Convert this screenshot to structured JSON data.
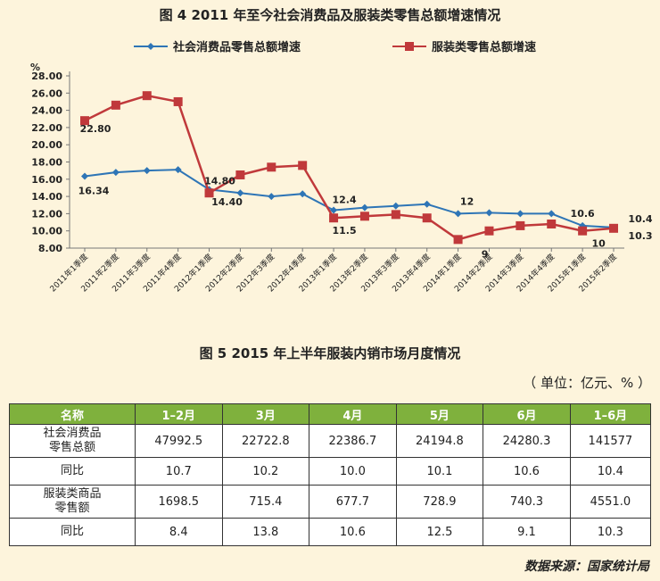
{
  "figure4": {
    "title": "图 4   2011 年至今社会消费品及服装类零售总额增速情况"
  },
  "figure5": {
    "title": "图 5   2015 年上半年服装内销市场月度情况",
    "unit": "（ 单位：亿元、% ）",
    "table": {
      "headers": [
        "名称",
        "1–2月",
        "3月",
        "4月",
        "5月",
        "6月",
        "1–6月"
      ],
      "rows": [
        {
          "name": "社会消费品\n零售总额",
          "values": [
            "47992.5",
            "22722.8",
            "22386.7",
            "24194.8",
            "24280.3",
            "141577"
          ]
        },
        {
          "name": "同比",
          "values": [
            "10.7",
            "10.2",
            "10.0",
            "10.1",
            "10.6",
            "10.4"
          ]
        },
        {
          "name": "服装类商品\n零售额",
          "values": [
            "1698.5",
            "715.4",
            "677.7",
            "728.9",
            "740.3",
            "4551.0"
          ]
        },
        {
          "name": "同比",
          "values": [
            "8.4",
            "13.8",
            "10.6",
            "12.5",
            "9.1",
            "10.3"
          ]
        }
      ]
    },
    "source": "数据来源：国家统计局"
  },
  "chart_data": {
    "type": "line",
    "title": "图 4   2011 年至今社会消费品及服装类零售总额增速情况",
    "ylabel": "%",
    "ylim": [
      8,
      28
    ],
    "yticks": [
      "8.00",
      "10.00",
      "12.00",
      "14.00",
      "16.00",
      "18.00",
      "20.00",
      "22.00",
      "24.00",
      "26.00",
      "28.00"
    ],
    "grid": false,
    "legend_position": "top",
    "categories": [
      "2011年1季度",
      "2011年2季度",
      "2011年3季度",
      "2011年4季度",
      "2012年1季度",
      "2012年2季度",
      "2012年3季度",
      "2012年4季度",
      "2013年1季度",
      "2013年2季度",
      "2013年3季度",
      "2013年4季度",
      "2014年1季度",
      "2014年2季度",
      "2014年3季度",
      "2014年4季度",
      "2015年1季度",
      "2015年2季度"
    ],
    "series": [
      {
        "name": "社会消费品零售总额增速",
        "color": "#2e75b6",
        "marker": "diamond",
        "values": [
          16.34,
          16.8,
          17.0,
          17.1,
          14.8,
          14.4,
          14.0,
          14.3,
          12.4,
          12.7,
          12.9,
          13.1,
          12.0,
          12.1,
          12.0,
          12.0,
          10.6,
          10.4
        ]
      },
      {
        "name": "服装类零售总额增速",
        "color": "#c0393b",
        "marker": "square",
        "values": [
          22.8,
          24.6,
          25.7,
          25.0,
          14.4,
          16.5,
          17.4,
          17.6,
          11.5,
          11.7,
          11.9,
          11.5,
          9.0,
          10.0,
          10.6,
          10.8,
          10.0,
          10.3
        ]
      }
    ],
    "data_labels": [
      {
        "series": 0,
        "index": 0,
        "text": "16.34"
      },
      {
        "series": 1,
        "index": 0,
        "text": "22.80"
      },
      {
        "series": 0,
        "index": 4,
        "text": "14.80"
      },
      {
        "series": 1,
        "index": 4,
        "text": "14.40"
      },
      {
        "series": 0,
        "index": 8,
        "text": "12.4"
      },
      {
        "series": 1,
        "index": 8,
        "text": "11.5"
      },
      {
        "series": 0,
        "index": 12,
        "text": "12"
      },
      {
        "series": 1,
        "index": 12,
        "text": "9"
      },
      {
        "series": 0,
        "index": 16,
        "text": "10.6"
      },
      {
        "series": 1,
        "index": 16,
        "text": "10"
      },
      {
        "series": 0,
        "index": 17,
        "text": "10.4"
      },
      {
        "series": 1,
        "index": 17,
        "text": "10.3"
      }
    ]
  }
}
